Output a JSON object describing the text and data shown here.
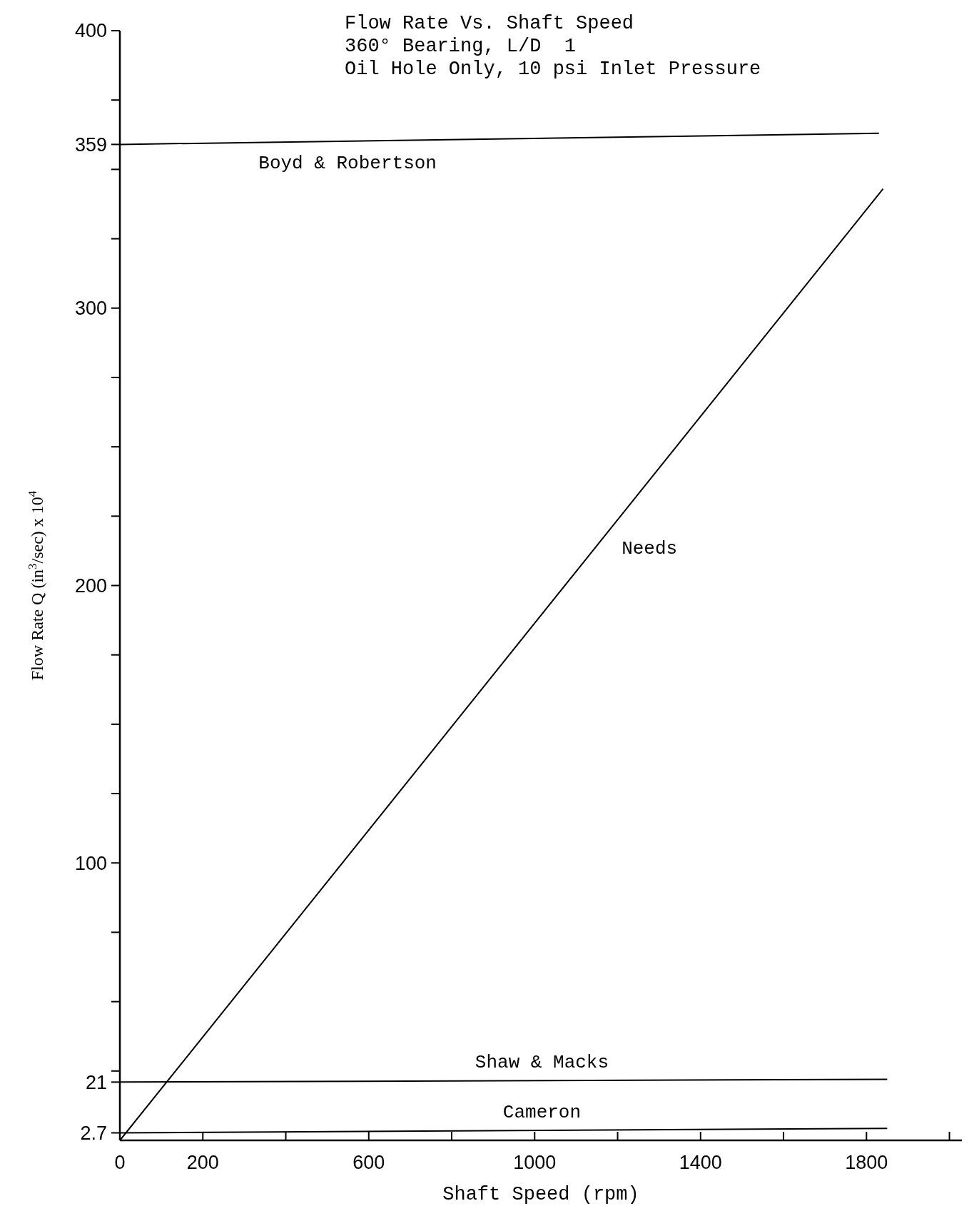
{
  "chart_data": {
    "type": "line",
    "title": "Flow Rate Vs. Shaft Speed",
    "subtitle": "360° Bearing, L/D  1\nOil Hole Only, 10 psi Inlet Pressure",
    "xlabel": "Shaft Speed (rpm)",
    "ylabel": "Flow Rate  Q (in$^{3}$/sec) x 10$^{4}$",
    "xlim": [
      0,
      2030
    ],
    "xticks": [
      0,
      200,
      {
        "value": 400,
        "label": null
      },
      600,
      {
        "value": 800,
        "label": null
      },
      1000,
      {
        "value": 1200,
        "label": null
      },
      1400,
      {
        "value": 1600,
        "label": null
      },
      1800,
      {
        "value": 2000,
        "label": null
      }
    ],
    "ylim": [
      0,
      400
    ],
    "yticks": [
      2.7,
      21,
      {
        "value": 25,
        "label": null
      },
      {
        "value": 50,
        "label": null
      },
      {
        "value": 75,
        "label": null
      },
      100,
      {
        "value": 125,
        "label": null
      },
      {
        "value": 150,
        "label": null
      },
      {
        "value": 175,
        "label": null
      },
      200,
      {
        "value": 225,
        "label": null
      },
      {
        "value": 250,
        "label": null
      },
      {
        "value": 275,
        "label": null
      },
      300,
      {
        "value": 325,
        "label": null
      },
      {
        "value": 350,
        "label": null
      },
      359,
      {
        "value": 375,
        "label": null
      },
      400
    ],
    "grid": false,
    "legend": false,
    "marker": "none",
    "line_style": "solid",
    "series": [
      {
        "name": "Boyd & Robertson",
        "color": "#000000",
        "x": [
          0,
          1830
        ],
        "values": [
          359,
          363
        ]
      },
      {
        "name": "Needs",
        "color": "#000000",
        "x": [
          0,
          1840
        ],
        "values": [
          0,
          343
        ]
      },
      {
        "name": "Shaw & Macks",
        "color": "#000000",
        "x": [
          0,
          1850
        ],
        "values": [
          21,
          22
        ]
      },
      {
        "name": "Cameron",
        "color": "#000000",
        "x": [
          0,
          1850
        ],
        "values": [
          2.7,
          4.3
        ]
      }
    ]
  }
}
